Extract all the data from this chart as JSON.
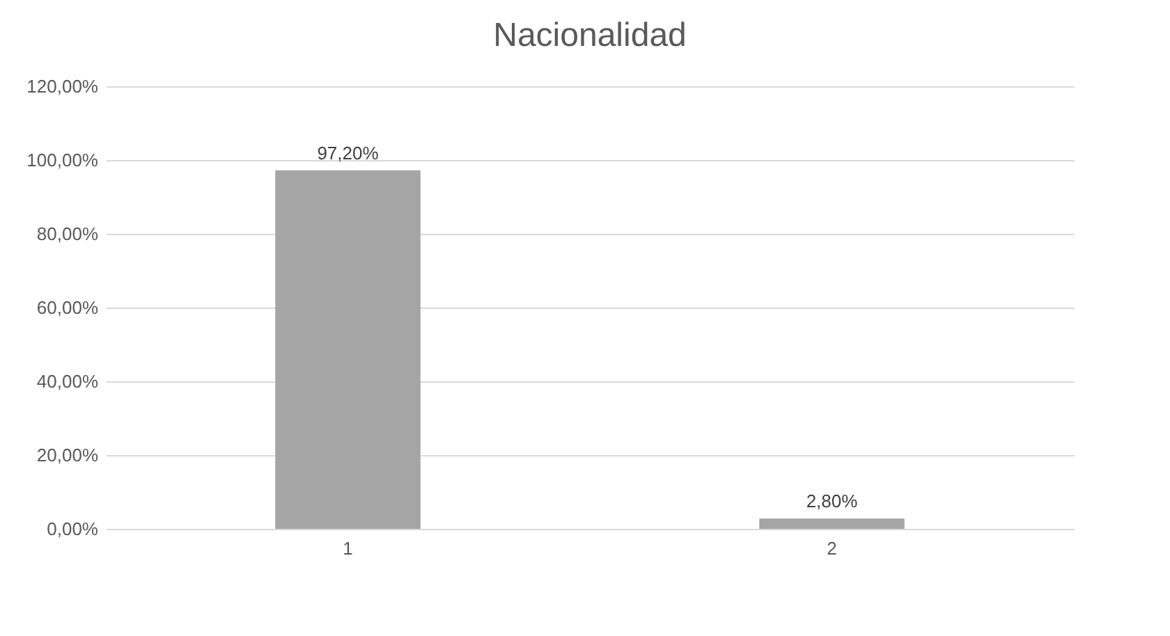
{
  "chart_data": {
    "type": "bar",
    "title": "Nacionalidad",
    "categories": [
      "1",
      "2"
    ],
    "values": [
      97.2,
      2.8
    ],
    "color": "#a5a5a5",
    "value_labels": [
      "97,20%",
      "2,80%"
    ],
    "ylim": [
      0,
      120
    ],
    "yticks": [
      {
        "value": 0,
        "label": "0,00%"
      },
      {
        "value": 20,
        "label": "20,00%"
      },
      {
        "value": 40,
        "label": "40,00%"
      },
      {
        "value": 60,
        "label": "60,00%"
      },
      {
        "value": 80,
        "label": "80,00%"
      },
      {
        "value": 100,
        "label": "100,00%"
      },
      {
        "value": 120,
        "label": "120,00%"
      }
    ],
    "grid": "y"
  }
}
